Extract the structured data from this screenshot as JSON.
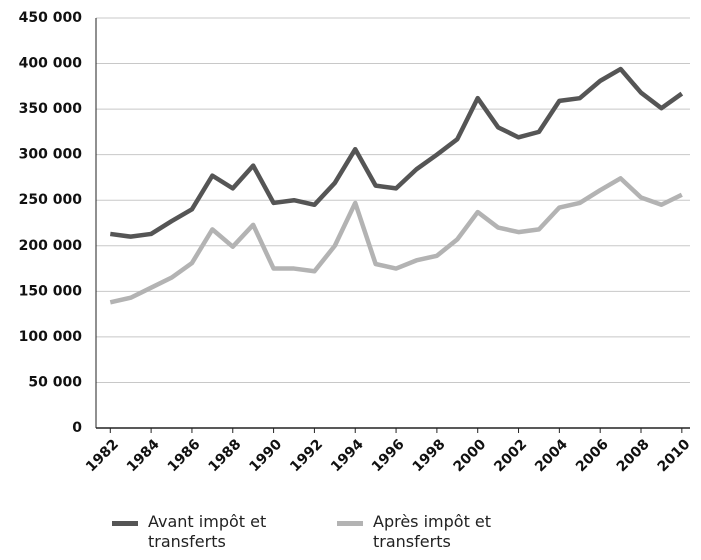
{
  "chart_data": {
    "type": "line",
    "x": [
      1982,
      1983,
      1984,
      1985,
      1986,
      1987,
      1988,
      1989,
      1990,
      1991,
      1992,
      1993,
      1994,
      1995,
      1996,
      1997,
      1998,
      1999,
      2000,
      2001,
      2002,
      2003,
      2004,
      2005,
      2006,
      2007,
      2008,
      2009,
      2010
    ],
    "series": [
      {
        "name": "Avant impôt et transferts",
        "color": "#555555",
        "values": [
          213000,
          210000,
          213000,
          227000,
          240000,
          277000,
          263000,
          288000,
          247000,
          250000,
          245000,
          269000,
          306000,
          266000,
          263000,
          284000,
          300000,
          317000,
          362000,
          330000,
          319000,
          325000,
          359000,
          362000,
          381000,
          394000,
          368000,
          351000,
          367000
        ]
      },
      {
        "name": "Après impôt et transferts",
        "color": "#b3b3b3",
        "values": [
          138000,
          143000,
          154000,
          165000,
          181000,
          218000,
          199000,
          223000,
          175000,
          175000,
          172000,
          200000,
          247000,
          180000,
          175000,
          184000,
          189000,
          207000,
          237000,
          220000,
          215000,
          218000,
          242000,
          247000,
          261000,
          274000,
          253000,
          245000,
          256000
        ]
      }
    ],
    "xlim": [
      1981.3,
      2010.4
    ],
    "xticks": [
      1982,
      1984,
      1986,
      1988,
      1990,
      1992,
      1994,
      1996,
      1998,
      2000,
      2002,
      2004,
      2006,
      2008,
      2010
    ],
    "ylim": [
      0,
      450000
    ],
    "yticks": [
      0,
      {
        "value": 50000,
        "label": "50 000"
      },
      {
        "value": 100000,
        "label": "100 000"
      },
      {
        "value": 150000,
        "label": "150 000"
      },
      {
        "value": 200000,
        "label": "200 000"
      },
      {
        "value": 250000,
        "label": "250 000"
      },
      {
        "value": 300000,
        "label": "300 000"
      },
      {
        "value": 350000,
        "label": "350 000"
      },
      {
        "value": 400000,
        "label": "400 000"
      },
      {
        "value": 450000,
        "label": "450 000"
      }
    ],
    "grid": true,
    "legend": "bottom"
  }
}
